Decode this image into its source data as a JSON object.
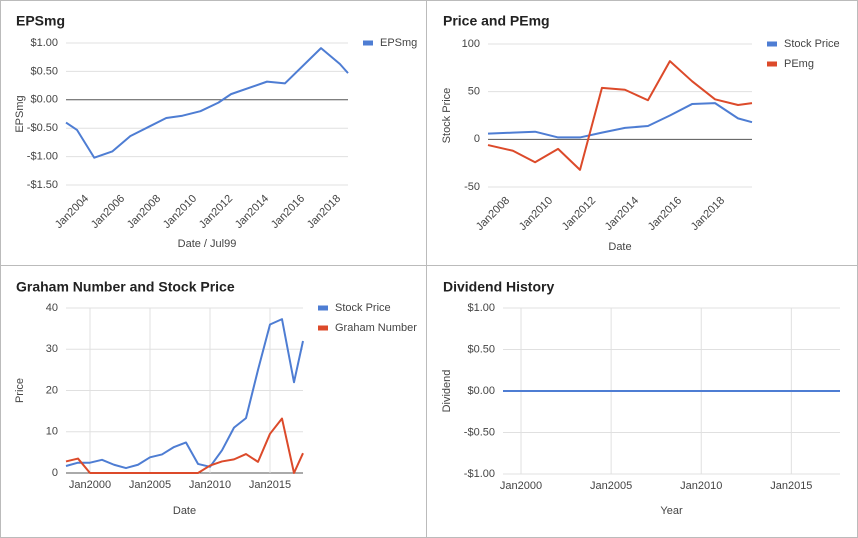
{
  "chart_data": [
    {
      "type": "line",
      "title": "EPSmg",
      "x_label": "Date / Jul99",
      "y_label": "EPSmg",
      "x": [
        2002.83,
        2003.44,
        2004.4,
        2005.4,
        2006.4,
        2007.4,
        2008.4,
        2009.3,
        2010.3,
        2011.3,
        2012.0,
        2014.0,
        2015.0,
        2017.0,
        2018.05,
        2018.5
      ],
      "series": [
        {
          "name": "EPSmg",
          "color": "#4e7dd3",
          "values": [
            -0.4,
            -0.53,
            -1.02,
            -0.91,
            -0.64,
            -0.48,
            -0.32,
            -0.28,
            -0.2,
            -0.05,
            0.1,
            0.32,
            0.29,
            0.91,
            0.63,
            0.47
          ]
        }
      ],
      "xlim": [
        2002.83,
        2018.5
      ],
      "xticks": [
        {
          "value": 2004,
          "label": "Jan2004"
        },
        {
          "value": 2006,
          "label": "Jan2006"
        },
        {
          "value": 2008,
          "label": "Jan2008"
        },
        {
          "value": 2010,
          "label": "Jan2010"
        },
        {
          "value": 2012,
          "label": "Jan2012"
        },
        {
          "value": 2014,
          "label": "Jan2014"
        },
        {
          "value": 2016,
          "label": "Jan2016"
        },
        {
          "value": 2018,
          "label": "Jan2018"
        }
      ],
      "ylim": [
        -1.5,
        1.0
      ],
      "yticks": [
        {
          "value": 1.0,
          "label": "$1.00"
        },
        {
          "value": 0.5,
          "label": "$0.50"
        },
        {
          "value": 0,
          "label": "$0.00"
        },
        {
          "value": -0.5,
          "label": "-$0.50"
        },
        {
          "value": -1.0,
          "label": "-$1.00"
        },
        {
          "value": -1.5,
          "label": "-$1.50"
        }
      ],
      "grid": true,
      "xgrid": false,
      "legend": "right"
    },
    {
      "type": "line",
      "title": "Price and PEmg",
      "x_label": "Date",
      "y_label": "Stock Price",
      "x": [
        2007.07,
        2008.23,
        2009.26,
        2010.33,
        2011.35,
        2012.37,
        2013.44,
        2014.51,
        2015.53,
        2016.56,
        2017.63,
        2018.7,
        2019.35
      ],
      "series": [
        {
          "name": "Stock Price",
          "color": "#4e7dd3",
          "values": [
            6,
            7,
            8,
            2,
            2,
            7,
            12,
            14,
            25,
            37,
            38,
            22,
            18
          ]
        },
        {
          "name": "PEmg",
          "color": "#dc4a2a",
          "values": [
            -6,
            -12,
            -24,
            -10,
            -32,
            54,
            52,
            41,
            82,
            61,
            42,
            36,
            38
          ]
        }
      ],
      "xlim": [
        2007.07,
        2019.35
      ],
      "xticks": [
        {
          "value": 2008,
          "label": "Jan2008"
        },
        {
          "value": 2010,
          "label": "Jan2010"
        },
        {
          "value": 2012,
          "label": "Jan2012"
        },
        {
          "value": 2014,
          "label": "Jan2014"
        },
        {
          "value": 2016,
          "label": "Jan2016"
        },
        {
          "value": 2018,
          "label": "Jan2018"
        }
      ],
      "ylim": [
        -50,
        100
      ],
      "yticks": [
        100,
        50,
        0,
        -50
      ],
      "grid": true,
      "xgrid": false,
      "legend": "right"
    },
    {
      "type": "line",
      "title": "Graham Number and Stock Price",
      "x_label": "Date",
      "y_label": "Price",
      "x": [
        1998,
        1999,
        2000,
        2001,
        2002,
        2003,
        2004,
        2005,
        2006,
        2007,
        2008,
        2009,
        2010,
        2011,
        2012,
        2013,
        2014,
        2015,
        2016,
        2017,
        2017.75
      ],
      "series": [
        {
          "name": "Stock Price",
          "color": "#4e7dd3",
          "values": [
            1.7,
            2.5,
            2.5,
            3.2,
            2.0,
            1.2,
            2.0,
            3.8,
            4.5,
            6.3,
            7.4,
            2.2,
            1.5,
            5.5,
            11.0,
            13.3,
            25.0,
            36.0,
            37.3,
            22.0,
            32.0
          ]
        },
        {
          "name": "Graham Number",
          "color": "#dc4a2a",
          "values": [
            2.8,
            3.5,
            0,
            0,
            0,
            0,
            0,
            0,
            0,
            0,
            0,
            0,
            1.8,
            2.8,
            3.3,
            4.6,
            2.7,
            9.5,
            13.2,
            0,
            4.8
          ]
        }
      ],
      "xlim": [
        1998,
        2017.75
      ],
      "xticks": [
        {
          "value": 2000,
          "label": "Jan2000"
        },
        {
          "value": 2005,
          "label": "Jan2005"
        },
        {
          "value": 2010,
          "label": "Jan2010"
        },
        {
          "value": 2015,
          "label": "Jan2015"
        }
      ],
      "ylim": [
        0,
        40
      ],
      "yticks": [
        0,
        10,
        20,
        30,
        40
      ],
      "grid": true,
      "xgrid": true,
      "legend": "right"
    },
    {
      "type": "line",
      "title": "Dividend History",
      "x_label": "Year",
      "y_label": "Dividend",
      "x": [
        1999,
        2017.7
      ],
      "series": [
        {
          "color": "#4e7dd3",
          "values": [
            0,
            0
          ]
        }
      ],
      "xlim": [
        1999,
        2017.7
      ],
      "xticks": [
        {
          "value": 2000,
          "label": "Jan2000"
        },
        {
          "value": 2005,
          "label": "Jan2005"
        },
        {
          "value": 2010,
          "label": "Jan2010"
        },
        {
          "value": 2015,
          "label": "Jan2015"
        }
      ],
      "ylim": [
        -1.0,
        1.0
      ],
      "yticks": [
        {
          "value": 1.0,
          "label": "$1.00"
        },
        {
          "value": 0.5,
          "label": "$0.50"
        },
        {
          "value": 0,
          "label": "$0.00"
        },
        {
          "value": -0.5,
          "label": "-$0.50"
        },
        {
          "value": -1.0,
          "label": "-$1.00"
        }
      ],
      "grid": true,
      "xgrid": true
    }
  ]
}
